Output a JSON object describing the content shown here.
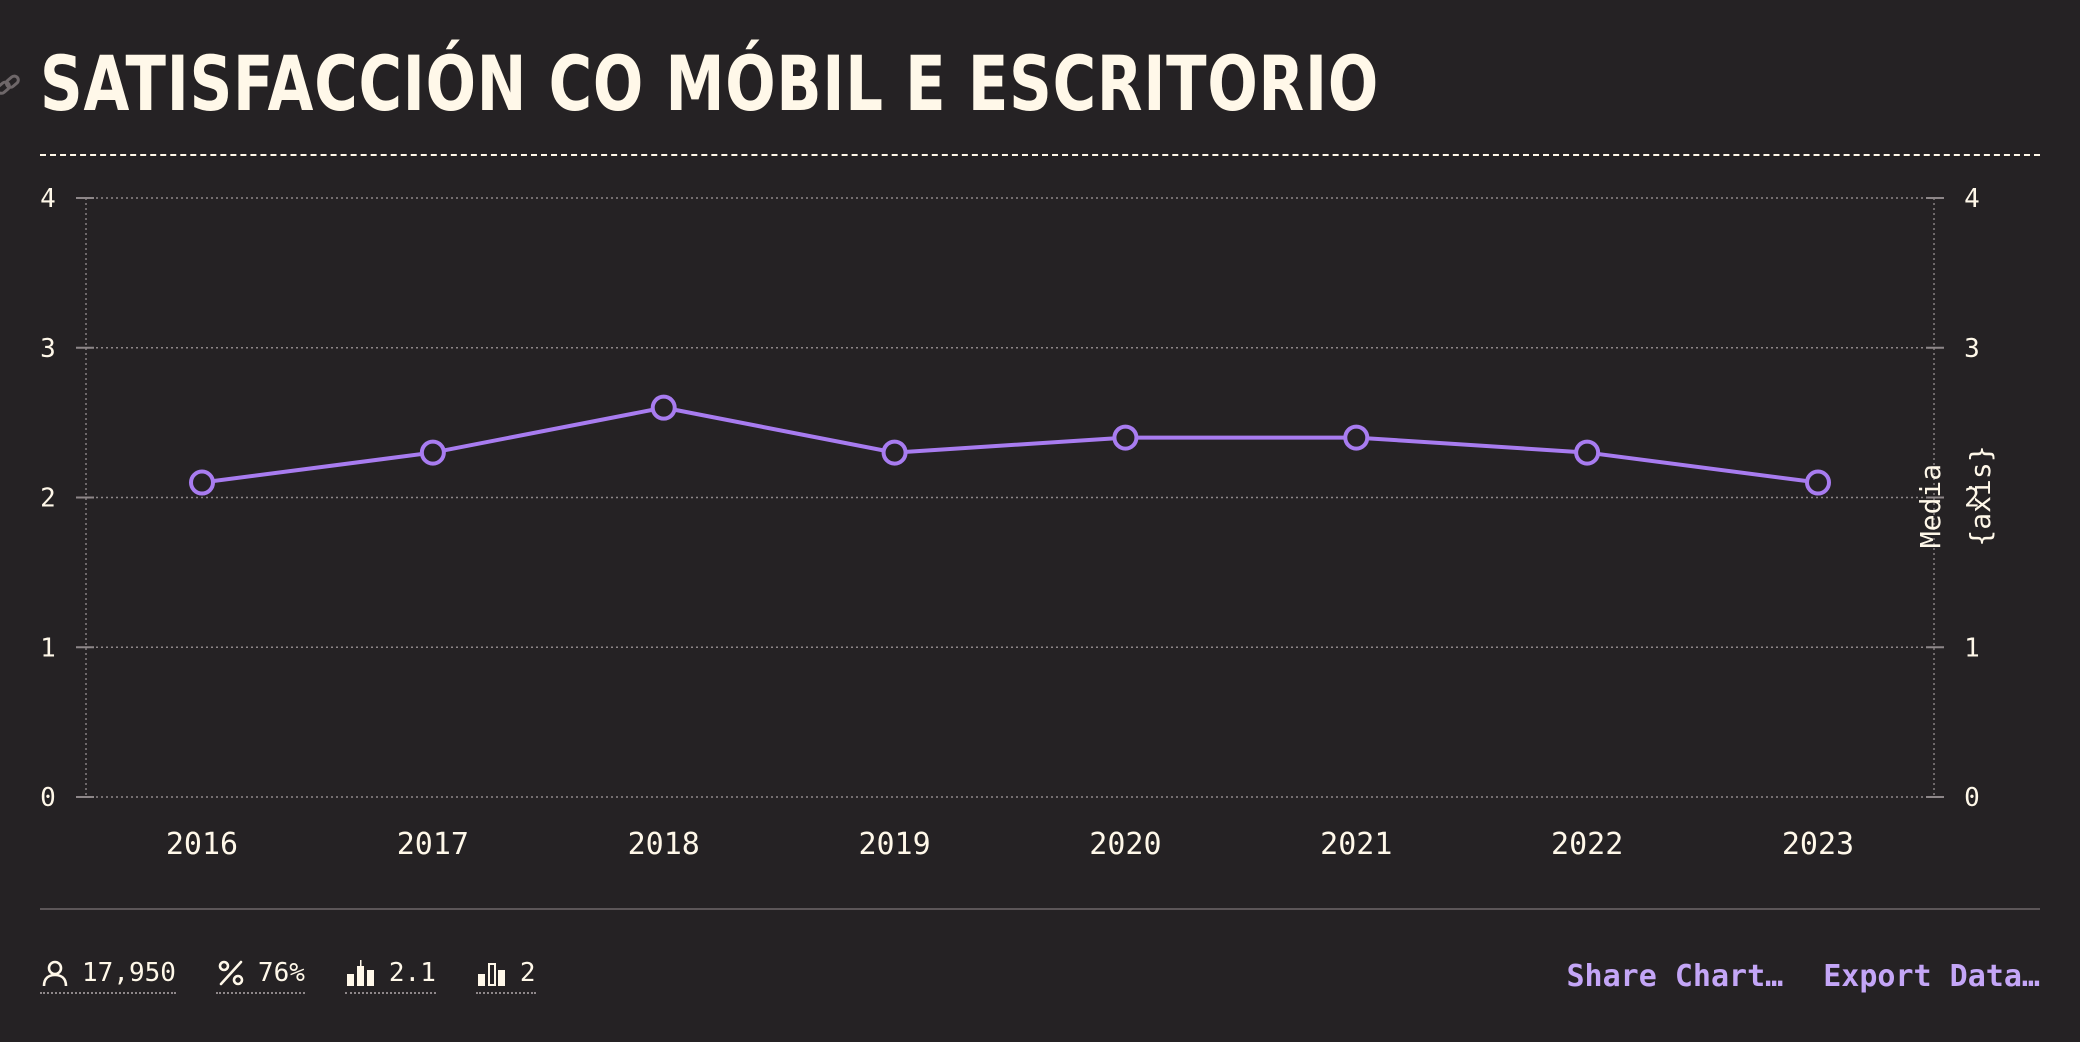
{
  "page": {
    "title": "SATISFACCIÓN CO MÓBIL E ESCRITORIO"
  },
  "colors": {
    "background": "#252224",
    "text": "#fff8e9",
    "series": "#a87cf0",
    "accent": "#c4a6f7",
    "grid": "#8e8789"
  },
  "chart_data": {
    "type": "line",
    "title": "SATISFACCIÓN CO MÓBIL E ESCRITORIO",
    "x": [
      "2016",
      "2017",
      "2018",
      "2019",
      "2020",
      "2021",
      "2022",
      "2023"
    ],
    "series": [
      {
        "values": [
          2.1,
          2.3,
          2.6,
          2.3,
          2.4,
          2.4,
          2.3,
          2.1
        ]
      }
    ],
    "ylim": [
      0,
      4
    ],
    "yticks": [
      0,
      1,
      2,
      3,
      4
    ],
    "y_left_ticks_labels": [
      "0",
      "1",
      "2",
      "3",
      "4"
    ],
    "y_right_ticks_labels": [
      "0",
      "1",
      "2",
      "3",
      "4"
    ],
    "ylabel_right": [
      "Media",
      "{axis}"
    ],
    "grid": true,
    "marker": "hollow-circle"
  },
  "footer": {
    "stats": [
      {
        "icon": "person-icon",
        "value": "17,950"
      },
      {
        "icon": "percent-icon",
        "value": "76%"
      },
      {
        "icon": "median-bars-icon",
        "value": "2.1"
      },
      {
        "icon": "mode-bars-icon",
        "value": "2"
      }
    ],
    "actions": [
      {
        "label": "Share Chart…"
      },
      {
        "label": "Export Data…"
      }
    ]
  }
}
